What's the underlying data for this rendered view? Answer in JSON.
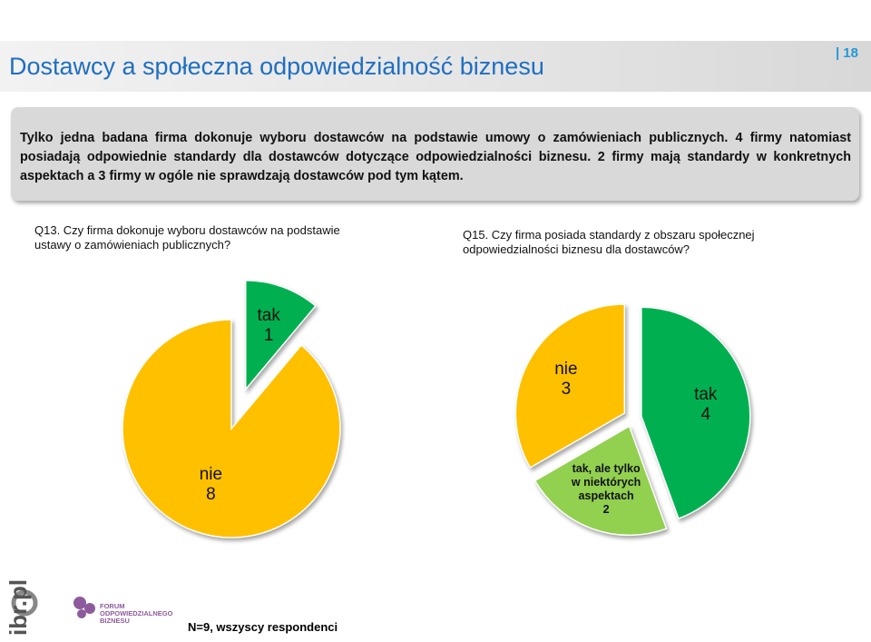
{
  "slide": {
    "title": "Dostawcy a społeczna odpowiedzialność biznesu",
    "page": "| 18",
    "summary": "Tylko jedna badana firma dokonuje wyboru dostawców na podstawie umowy o zamówieniach publicznych. 4 firmy natomiast posiadają odpowiednie standardy dla dostawców dotyczące odpowiedzialności biznesu. 2 firmy mają standardy w konkretnych aspektach a 3 firmy w ogóle nie sprawdzają dostawców pod tym kątem.",
    "footnote": "N=9, wszyscy respondenci",
    "logos": [
      "ibr.pl",
      "FORUM ODPOWIEDZIALNEGO BIZNESU"
    ]
  },
  "chart_data": [
    {
      "type": "pie",
      "title": "Q13. Czy firma dokonuje wyboru dostawców na podstawie ustawy o zamówieniach publicznych?",
      "categories": [
        "tak",
        "nie"
      ],
      "values": [
        1,
        8
      ],
      "colors": [
        "#00b050",
        "#ffc000"
      ]
    },
    {
      "type": "pie",
      "title": "Q15. Czy firma posiada standardy z obszaru społecznej odpowiedzialności biznesu dla dostawców?",
      "categories": [
        "tak",
        "tak, ale tylko w niektórych aspektach",
        "nie"
      ],
      "values": [
        4,
        2,
        3
      ],
      "colors": [
        "#00b050",
        "#92d050",
        "#ffc000"
      ]
    }
  ]
}
